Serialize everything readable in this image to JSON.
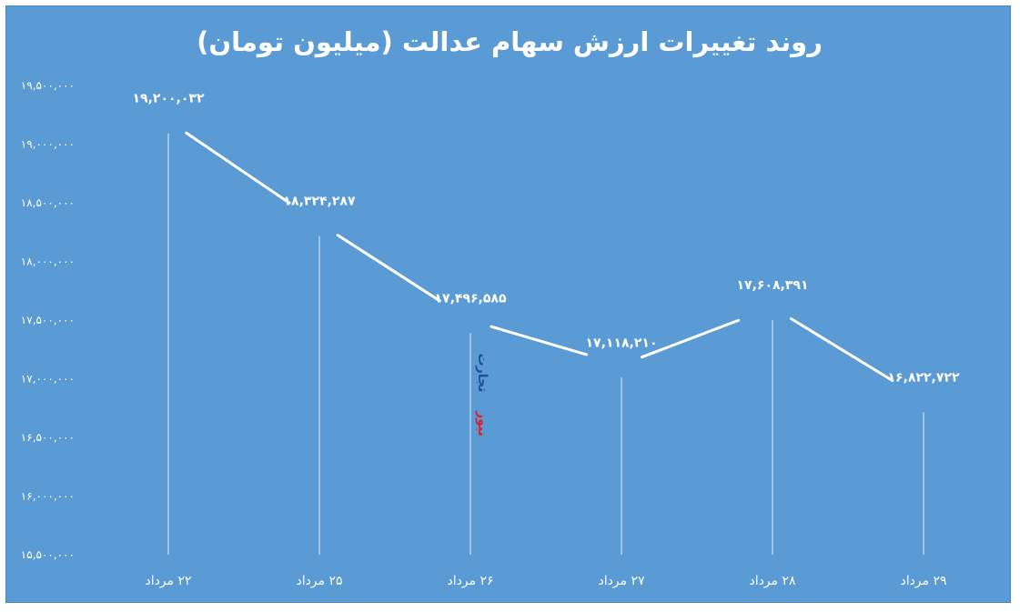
{
  "chart_data": {
    "type": "line",
    "title": "روند تغییرات ارزش سهام عدالت (میلیون تومان)",
    "categories": [
      "۲۲ مرداد",
      "۲۵ مرداد",
      "۲۶ مرداد",
      "۲۷ مرداد",
      "۲۸ مرداد",
      "۲۹ مرداد"
    ],
    "values": [
      19200032,
      18324287,
      17496585,
      17118210,
      17608391,
      16822722
    ],
    "data_labels": [
      "۱۹,۲۰۰,۰۳۲",
      "۱۸,۳۲۴,۲۸۷",
      "۱۷,۴۹۶,۵۸۵",
      "۱۷,۱۱۸,۲۱۰",
      "۱۷,۶۰۸,۳۹۱",
      "۱۶,۸۲۲,۷۲۲"
    ],
    "ylim": [
      15500000,
      19500000
    ],
    "yticks": [
      19500000,
      19000000,
      18500000,
      18000000,
      17500000,
      17000000,
      16500000,
      16000000,
      15500000
    ],
    "ytick_labels": [
      "۱۹,۵۰۰,۰۰۰",
      "۱۹,۰۰۰,۰۰۰",
      "۱۸,۵۰۰,۰۰۰",
      "۱۸,۰۰۰,۰۰۰",
      "۱۷,۵۰۰,۰۰۰",
      "۱۷,۰۰۰,۰۰۰",
      "۱۶,۵۰۰,۰۰۰",
      "۱۶,۰۰۰,۰۰۰",
      "۱۵,۵۰۰,۰۰۰"
    ],
    "grid": false,
    "drop_lines": true,
    "colors": {
      "background": "#5b9bd5",
      "line": "#ffffff",
      "text": "#ffffff"
    }
  },
  "watermark": {
    "part1": "تجارت",
    "part2": "نیوز",
    "color1": "#1f4e9a",
    "color2": "#d8232a"
  }
}
